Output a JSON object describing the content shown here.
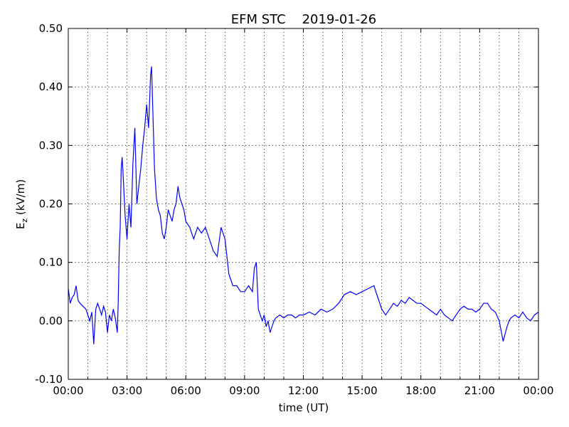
{
  "chart_data": {
    "type": "line",
    "title": "EFM STC    2019-01-26",
    "xlabel": "time (UT)",
    "ylabel_main": "E",
    "ylabel_sub": "z",
    "ylabel_rest": " (kV/m)",
    "xlim_hours": [
      0,
      24
    ],
    "ylim": [
      -0.1,
      0.5
    ],
    "grid": true,
    "line_color": "#0000ff",
    "x_tick_labels": [
      "00:00",
      "03:00",
      "06:00",
      "09:00",
      "12:00",
      "15:00",
      "18:00",
      "21:00",
      "00:00"
    ],
    "y_tick_labels": [
      "-0.10",
      "0.00",
      "0.10",
      "0.20",
      "0.30",
      "0.40",
      "0.50"
    ],
    "y_tick_values": [
      -0.1,
      0.0,
      0.1,
      0.2,
      0.3,
      0.4,
      0.5
    ],
    "series": [
      {
        "x_hours": [
          0.0,
          0.1,
          0.2,
          0.3,
          0.4,
          0.5,
          0.6,
          0.75,
          0.9,
          1.0,
          1.1,
          1.2,
          1.3,
          1.4,
          1.5,
          1.6,
          1.7,
          1.8,
          1.9,
          2.0,
          2.1,
          2.2,
          2.3,
          2.4,
          2.5,
          2.55,
          2.6,
          2.65,
          2.7,
          2.75,
          2.8,
          2.9,
          3.0,
          3.1,
          3.2,
          3.3,
          3.4,
          3.5,
          3.6,
          3.7,
          3.8,
          3.9,
          4.0,
          4.1,
          4.2,
          4.25,
          4.3,
          4.4,
          4.5,
          4.6,
          4.7,
          4.8,
          4.9,
          5.0,
          5.1,
          5.2,
          5.3,
          5.4,
          5.5,
          5.6,
          5.7,
          5.8,
          5.9,
          6.0,
          6.2,
          6.4,
          6.6,
          6.8,
          7.0,
          7.2,
          7.4,
          7.6,
          7.8,
          8.0,
          8.2,
          8.4,
          8.6,
          8.8,
          9.0,
          9.2,
          9.4,
          9.5,
          9.6,
          9.7,
          9.8,
          9.9,
          10.0,
          10.1,
          10.2,
          10.3,
          10.4,
          10.5,
          10.6,
          10.8,
          11.0,
          11.2,
          11.4,
          11.6,
          11.8,
          12.0,
          12.3,
          12.6,
          12.9,
          13.2,
          13.5,
          13.8,
          14.1,
          14.4,
          14.7,
          15.0,
          15.3,
          15.6,
          15.8,
          16.0,
          16.2,
          16.4,
          16.6,
          16.8,
          17.0,
          17.2,
          17.4,
          17.6,
          17.8,
          18.0,
          18.2,
          18.4,
          18.6,
          18.8,
          19.0,
          19.2,
          19.4,
          19.6,
          19.8,
          20.0,
          20.2,
          20.4,
          20.6,
          20.8,
          21.0,
          21.2,
          21.4,
          21.6,
          21.8,
          22.0,
          22.2,
          22.4,
          22.5,
          22.6,
          22.8,
          23.0,
          23.2,
          23.4,
          23.6,
          23.8,
          24.0
        ],
        "values": [
          0.055,
          0.03,
          0.04,
          0.045,
          0.06,
          0.035,
          0.03,
          0.025,
          0.02,
          0.01,
          0.0,
          0.015,
          -0.04,
          0.02,
          0.03,
          0.02,
          0.01,
          0.025,
          0.015,
          -0.02,
          0.01,
          0.0,
          0.02,
          0.005,
          -0.02,
          0.03,
          0.12,
          0.16,
          0.26,
          0.28,
          0.25,
          0.18,
          0.14,
          0.2,
          0.16,
          0.27,
          0.33,
          0.2,
          0.23,
          0.26,
          0.3,
          0.33,
          0.37,
          0.33,
          0.42,
          0.435,
          0.38,
          0.26,
          0.21,
          0.19,
          0.18,
          0.15,
          0.14,
          0.16,
          0.19,
          0.18,
          0.17,
          0.19,
          0.2,
          0.23,
          0.21,
          0.2,
          0.19,
          0.17,
          0.16,
          0.14,
          0.16,
          0.15,
          0.16,
          0.14,
          0.12,
          0.11,
          0.16,
          0.14,
          0.08,
          0.06,
          0.06,
          0.05,
          0.05,
          0.06,
          0.05,
          0.09,
          0.1,
          0.02,
          0.01,
          0.0,
          0.01,
          -0.01,
          0.0,
          -0.02,
          -0.01,
          0.0,
          0.005,
          0.01,
          0.005,
          0.01,
          0.01,
          0.005,
          0.01,
          0.01,
          0.015,
          0.01,
          0.02,
          0.015,
          0.02,
          0.03,
          0.045,
          0.05,
          0.045,
          0.05,
          0.055,
          0.06,
          0.04,
          0.02,
          0.01,
          0.02,
          0.03,
          0.025,
          0.035,
          0.03,
          0.04,
          0.035,
          0.03,
          0.03,
          0.025,
          0.02,
          0.015,
          0.01,
          0.02,
          0.01,
          0.005,
          0.0,
          0.01,
          0.02,
          0.025,
          0.02,
          0.02,
          0.015,
          0.02,
          0.03,
          0.03,
          0.02,
          0.015,
          0.0,
          -0.035,
          -0.01,
          0.0,
          0.005,
          0.01,
          0.005,
          0.015,
          0.005,
          0.0,
          0.01,
          0.015
        ]
      }
    ]
  }
}
